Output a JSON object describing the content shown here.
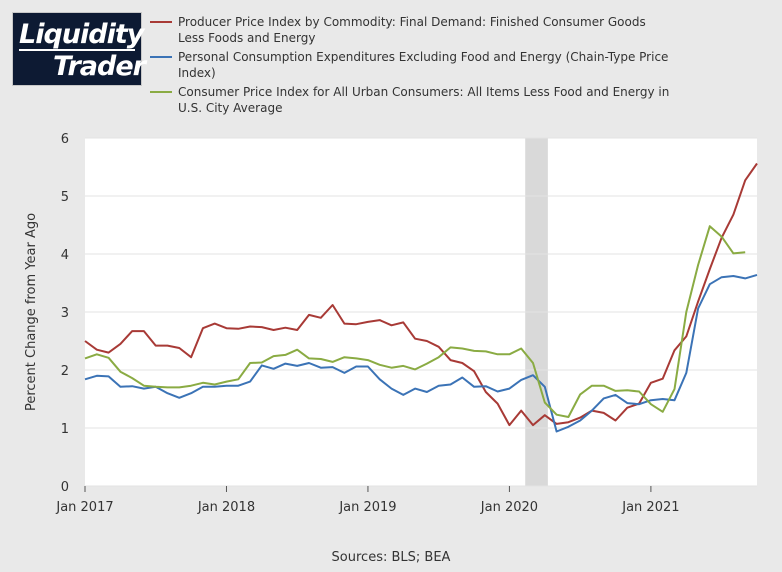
{
  "logo": {
    "line1": "Liquidity",
    "line2": "Trader"
  },
  "source": "Sources: BLS; BEA",
  "colors": {
    "ppi": "#a83a36",
    "pce": "#3b73b6",
    "cpi": "#8aab43",
    "recession": "#d9d9d9"
  },
  "chart_data": {
    "type": "line",
    "title": "",
    "xlabel": "",
    "ylabel": "Percent Change from Year Ago",
    "ylim": [
      0,
      6
    ],
    "yticks": [
      0,
      1,
      2,
      3,
      4,
      5,
      6
    ],
    "x_start": "2017-01",
    "xticks": [
      {
        "label": "Jan 2017",
        "index": 0
      },
      {
        "label": "Jan 2018",
        "index": 12
      },
      {
        "label": "Jan 2019",
        "index": 24
      },
      {
        "label": "Jan 2020",
        "index": 36
      },
      {
        "label": "Jan 2021",
        "index": 48
      }
    ],
    "recession_band": {
      "start_index": 37,
      "end_index": 39,
      "label": "2020 recession"
    },
    "series": [
      {
        "name": "Producer Price Index by Commodity: Final Demand: Finished Consumer Goods Less Foods and Energy",
        "color_key": "ppi",
        "values": [
          2.5,
          2.35,
          2.3,
          2.45,
          2.67,
          2.67,
          2.42,
          2.42,
          2.38,
          2.22,
          2.72,
          2.8,
          2.72,
          2.71,
          2.75,
          2.74,
          2.69,
          2.73,
          2.69,
          2.95,
          2.9,
          3.12,
          2.8,
          2.79,
          2.83,
          2.86,
          2.77,
          2.82,
          2.54,
          2.5,
          2.4,
          2.17,
          2.12,
          1.98,
          1.62,
          1.42,
          1.05,
          1.3,
          1.05,
          1.22,
          1.07,
          1.1,
          1.18,
          1.3,
          1.26,
          1.13,
          1.35,
          1.42,
          1.78,
          1.85,
          2.34,
          2.58,
          3.18,
          3.74,
          4.28,
          4.68,
          5.27,
          5.56
        ]
      },
      {
        "name": "Personal Consumption Expenditures Excluding Food and Energy (Chain-Type Price Index)",
        "color_key": "pce",
        "values": [
          1.84,
          1.9,
          1.89,
          1.71,
          1.72,
          1.68,
          1.71,
          1.6,
          1.52,
          1.6,
          1.71,
          1.71,
          1.73,
          1.73,
          1.8,
          2.08,
          2.02,
          2.11,
          2.07,
          2.12,
          2.04,
          2.05,
          1.95,
          2.06,
          2.06,
          1.84,
          1.68,
          1.57,
          1.68,
          1.62,
          1.73,
          1.75,
          1.87,
          1.71,
          1.72,
          1.63,
          1.68,
          1.83,
          1.91,
          1.71,
          0.94,
          1.02,
          1.13,
          1.3,
          1.51,
          1.57,
          1.43,
          1.41,
          1.48,
          1.5,
          1.48,
          1.95,
          3.06,
          3.48,
          3.6,
          3.62,
          3.58,
          3.64
        ]
      },
      {
        "name": "Consumer Price Index for All Urban Consumers: All Items Less Food and Energy in U.S. City Average",
        "color_key": "cpi",
        "values": [
          2.2,
          2.27,
          2.21,
          1.97,
          1.86,
          1.73,
          1.71,
          1.7,
          1.7,
          1.73,
          1.78,
          1.75,
          1.8,
          1.84,
          2.12,
          2.13,
          2.24,
          2.26,
          2.35,
          2.2,
          2.19,
          2.14,
          2.22,
          2.2,
          2.17,
          2.09,
          2.04,
          2.07,
          2.01,
          2.11,
          2.22,
          2.39,
          2.37,
          2.33,
          2.32,
          2.27,
          2.27,
          2.37,
          2.12,
          1.44,
          1.23,
          1.19,
          1.58,
          1.73,
          1.73,
          1.64,
          1.65,
          1.63,
          1.41,
          1.28,
          1.67,
          3.0,
          3.81,
          4.48,
          4.3,
          4.01,
          4.03
        ]
      }
    ]
  }
}
